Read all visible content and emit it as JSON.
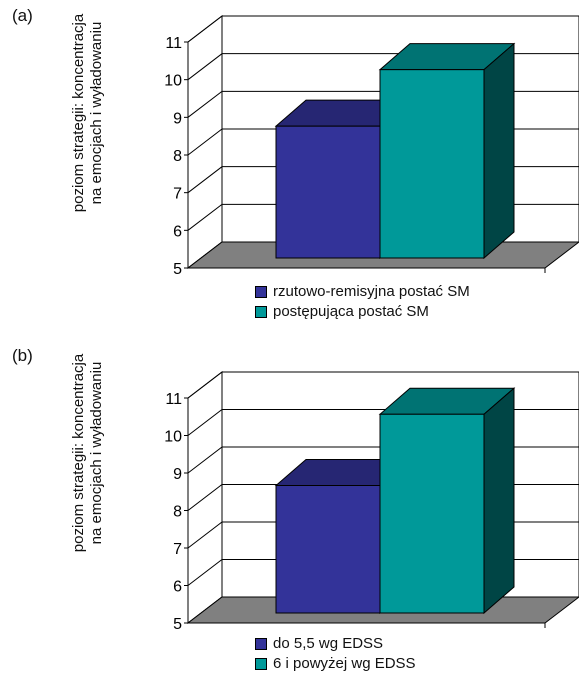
{
  "chart_data": [
    {
      "type": "bar",
      "panel_label": "(a)",
      "ylabel_lines": [
        "poziom strategii: koncentracja",
        "na emocjach i wyładowaniu"
      ],
      "ylim": [
        5,
        11
      ],
      "yticks": [
        "5",
        "6",
        "7",
        "8",
        "9",
        "10",
        "11"
      ],
      "grid": true,
      "series": [
        {
          "name": "rzutowo-remisyjna postać SM",
          "value": 8.5,
          "color": "#333399"
        },
        {
          "name": "postępująca postać SM",
          "value": 10.0,
          "color": "#009999"
        }
      ]
    },
    {
      "type": "bar",
      "panel_label": "(b)",
      "ylabel_lines": [
        "poziom strategii: koncentracja",
        "na emocjach i wyładowaniu"
      ],
      "ylim": [
        5,
        11
      ],
      "yticks": [
        "5",
        "6",
        "7",
        "8",
        "9",
        "10",
        "11"
      ],
      "grid": true,
      "series": [
        {
          "name": "do 5,5 wg EDSS",
          "value": 8.4,
          "color": "#333399"
        },
        {
          "name": "6 i powyżej wg EDSS",
          "value": 10.3,
          "color": "#009999"
        }
      ]
    }
  ]
}
